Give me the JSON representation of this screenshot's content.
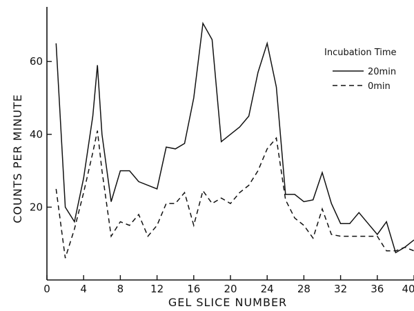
{
  "chart_data": {
    "type": "line",
    "title": "",
    "xlabel": "GEL SLICE NUMBER",
    "ylabel": "COUNTS PER MINUTE",
    "xlim": [
      0,
      40
    ],
    "ylim": [
      0,
      75
    ],
    "xticks": [
      0,
      4,
      8,
      12,
      16,
      20,
      24,
      28,
      32,
      36,
      40
    ],
    "yticks": [
      20,
      40,
      60
    ],
    "grid": false,
    "legend": {
      "title": "Incubation Time",
      "placement": "top-right"
    },
    "series": [
      {
        "name": "20min",
        "style": "solid",
        "color": "#111111",
        "x": [
          1,
          2,
          3,
          4,
          5,
          5.5,
          6,
          7,
          8,
          9,
          10,
          11,
          12,
          13,
          14,
          15,
          16,
          17,
          18,
          19,
          20,
          21,
          22,
          23,
          24,
          25,
          26,
          27,
          28,
          29,
          30,
          31,
          32,
          33,
          34,
          35,
          36,
          37,
          38,
          39,
          40
        ],
        "y": [
          65,
          20,
          16,
          28,
          45,
          59,
          40,
          21.5,
          30,
          30,
          27,
          26,
          25,
          36.5,
          36,
          37.5,
          50,
          70.5,
          66,
          38,
          40,
          42,
          45,
          57,
          65,
          53,
          23.5,
          23.5,
          21.5,
          22,
          29.5,
          21,
          15.5,
          15.5,
          18.5,
          15.5,
          12.5,
          16,
          7.5,
          9,
          11
        ]
      },
      {
        "name": "0min",
        "style": "dashed",
        "color": "#111111",
        "x": [
          1,
          2,
          3,
          4,
          5,
          5.5,
          6,
          7,
          8,
          9,
          10,
          11,
          12,
          13,
          14,
          15,
          16,
          17,
          18,
          19,
          20,
          21,
          22,
          23,
          24,
          25,
          26,
          27,
          28,
          29,
          30,
          31,
          32,
          33,
          34,
          35,
          36,
          37,
          38,
          39,
          40
        ],
        "y": [
          25,
          6,
          14,
          24,
          35,
          41,
          30,
          12,
          16,
          15,
          18,
          12,
          15,
          21,
          21,
          24,
          15,
          24.5,
          21,
          22.5,
          21,
          24,
          26,
          30,
          36,
          39,
          22,
          17,
          15,
          11.5,
          19.5,
          12.5,
          12,
          12,
          12,
          12,
          12,
          8,
          8,
          9,
          8
        ]
      }
    ]
  }
}
